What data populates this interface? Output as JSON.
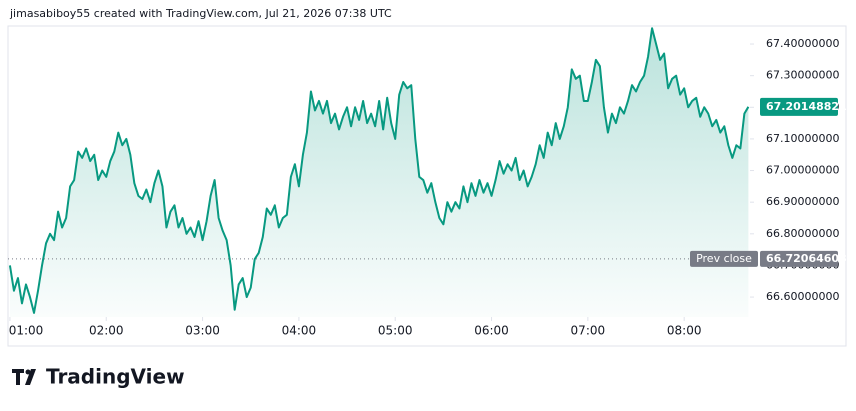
{
  "chart_data": {
    "type": "area",
    "title": "jimasabiboy55 created with TradingView.com, Jul 21, 2026 07:38 UTC",
    "brand": "TradingView",
    "color": "#089981",
    "x": [
      60,
      62.5,
      65,
      67.5,
      70,
      72.5,
      75,
      77.5,
      80,
      82.5,
      85,
      87.5,
      90,
      92.5,
      95,
      97.5,
      100,
      102.5,
      105,
      107.5,
      110,
      112.5,
      115,
      117.5,
      120,
      122.5,
      125,
      127.5,
      130,
      132.5,
      135,
      137.5,
      140,
      142.5,
      145,
      147.5,
      150,
      152.5,
      155,
      157.5,
      160,
      162.5,
      165,
      167.5,
      170,
      172.5,
      175,
      177.5,
      180,
      182.5,
      185,
      187.5,
      190,
      192.5,
      195,
      197.5,
      200,
      202.5,
      205,
      207.5,
      210,
      212.5,
      215,
      217.5,
      220,
      222.5,
      225,
      227.5,
      230,
      232.5,
      235,
      237.5,
      240,
      242.5,
      245,
      247.5,
      250,
      252.5,
      255,
      257.5,
      260,
      262.5,
      265,
      267.5,
      270,
      272.5,
      275,
      277.5,
      280,
      282.5,
      285,
      287.5,
      290,
      292.5,
      295,
      297.5,
      300,
      302.5,
      305,
      307.5,
      310,
      312.5,
      315,
      317.5,
      320,
      322.5,
      325,
      327.5,
      330,
      332.5,
      335,
      337.5,
      340,
      342.5,
      345,
      347.5,
      350,
      352.5,
      355,
      357.5,
      360,
      362.5,
      365,
      367.5,
      370,
      372.5,
      375,
      377.5,
      380,
      382.5,
      385,
      387.5,
      390,
      392.5,
      395,
      397.5,
      400,
      402.5,
      405,
      407.5,
      410,
      412.5,
      415,
      417.5,
      420,
      422.5,
      425,
      427.5,
      430,
      432.5,
      435,
      437.5,
      440,
      442.5,
      445,
      447.5,
      450,
      452.5,
      455,
      457.5,
      460,
      462.5,
      465,
      467.5,
      470,
      472.5,
      475,
      477.5,
      480,
      482.5,
      485,
      487.5,
      490,
      492.5,
      495,
      497.5,
      500,
      502.5,
      505,
      507.5,
      510,
      512.5,
      515,
      517.5,
      520
    ],
    "values": [
      66.7,
      66.62,
      66.66,
      66.58,
      66.64,
      66.6,
      66.55,
      66.62,
      66.7,
      66.77,
      66.8,
      66.78,
      66.87,
      66.82,
      66.85,
      66.95,
      66.97,
      67.06,
      67.04,
      67.07,
      67.03,
      67.05,
      66.97,
      67.0,
      66.98,
      67.03,
      67.06,
      67.12,
      67.08,
      67.1,
      67.05,
      66.96,
      66.92,
      66.91,
      66.94,
      66.9,
      66.96,
      67.0,
      66.95,
      66.82,
      66.87,
      66.89,
      66.82,
      66.85,
      66.8,
      66.82,
      66.79,
      66.84,
      66.78,
      66.84,
      66.92,
      66.97,
      66.85,
      66.81,
      66.78,
      66.7,
      66.56,
      66.64,
      66.66,
      66.6,
      66.63,
      66.72,
      66.74,
      66.79,
      66.88,
      66.86,
      66.89,
      66.82,
      66.85,
      66.86,
      66.98,
      67.02,
      66.95,
      67.05,
      67.12,
      67.25,
      67.19,
      67.22,
      67.18,
      67.22,
      67.15,
      67.18,
      67.13,
      67.17,
      67.2,
      67.14,
      67.2,
      67.16,
      67.22,
      67.15,
      67.18,
      67.14,
      67.22,
      67.13,
      67.23,
      67.15,
      67.1,
      67.24,
      67.28,
      67.26,
      67.27,
      67.1,
      66.98,
      66.97,
      66.93,
      66.96,
      66.9,
      66.85,
      66.83,
      66.9,
      66.87,
      66.9,
      66.88,
      66.95,
      66.9,
      66.96,
      66.92,
      66.97,
      66.93,
      66.96,
      66.92,
      66.97,
      67.03,
      66.99,
      67.02,
      67.0,
      67.04,
      66.97,
      67.0,
      66.95,
      66.98,
      67.02,
      67.08,
      67.04,
      67.12,
      67.08,
      67.15,
      67.1,
      67.14,
      67.2,
      67.32,
      67.29,
      67.3,
      67.22,
      67.22,
      67.28,
      67.35,
      67.33,
      67.2,
      67.12,
      67.18,
      67.15,
      67.2,
      67.18,
      67.22,
      67.27,
      67.25,
      67.28,
      67.3,
      67.36,
      67.45,
      67.4,
      67.35,
      67.37,
      67.26,
      67.29,
      67.3,
      67.24,
      67.26,
      67.2,
      67.22,
      67.23,
      67.17,
      67.2,
      67.18,
      67.14,
      67.16,
      67.12,
      67.14,
      67.08,
      67.04,
      67.08,
      67.07,
      67.18,
      67.20148821
    ],
    "prev_close_label": "Prev close",
    "prev_close": 66.72064608,
    "xlim": [
      58.8,
      521
    ],
    "ylim": [
      66.537,
      67.457
    ],
    "xticks": [
      {
        "value": 60,
        "label": "01:00"
      },
      {
        "value": 120,
        "label": "02:00"
      },
      {
        "value": 180,
        "label": "03:00"
      },
      {
        "value": 240,
        "label": "04:00"
      },
      {
        "value": 300,
        "label": "05:00"
      },
      {
        "value": 360,
        "label": "06:00"
      },
      {
        "value": 420,
        "label": "07:00"
      },
      {
        "value": 480,
        "label": "08:00"
      }
    ],
    "yticks": [
      {
        "value": 66.6,
        "label": "66.60000000"
      },
      {
        "value": 66.7,
        "label": "66.70000000"
      },
      {
        "value": 66.8,
        "label": "66.80000000"
      },
      {
        "value": 66.9,
        "label": "66.90000000"
      },
      {
        "value": 67.0,
        "label": "67.00000000"
      },
      {
        "value": 67.1,
        "label": "67.10000000"
      },
      {
        "value": 67.2,
        "label": "67.20000000"
      },
      {
        "value": 67.3,
        "label": "67.30000000"
      },
      {
        "value": 67.4,
        "label": "67.40000000"
      }
    ]
  }
}
